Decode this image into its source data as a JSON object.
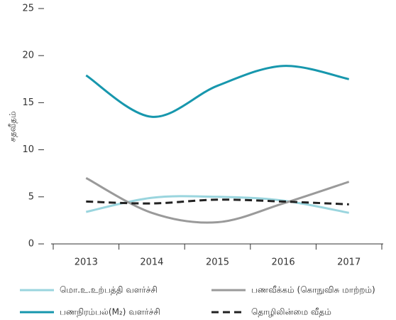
{
  "chart_data": {
    "type": "line",
    "y_label": "சதவீதம்",
    "categories": [
      "2013",
      "2014",
      "2015",
      "2016",
      "2017"
    ],
    "series": [
      {
        "name": "மொ.உ.உற்பத்தி வளர்ச்சி",
        "color": "#9ad5de",
        "dash": false,
        "values": [
          3.4,
          4.9,
          5.0,
          4.6,
          3.3
        ]
      },
      {
        "name": "பணவீக்கம் (கொநுவிசு மாற்றம்)",
        "color": "#9a9a9a",
        "dash": false,
        "values": [
          7.0,
          3.3,
          2.3,
          4.3,
          6.6
        ]
      },
      {
        "name": "பணநிரம்பல்(M₂) வளர்ச்சி",
        "color": "#1797ad",
        "dash": false,
        "values": [
          17.9,
          13.5,
          16.8,
          18.9,
          17.5
        ]
      },
      {
        "name": "தொழிலின்மை வீதம்",
        "color": "#222222",
        "dash": true,
        "values": [
          4.5,
          4.3,
          4.7,
          4.5,
          4.2
        ]
      }
    ],
    "ylim": [
      0,
      25
    ],
    "yticks": [
      0,
      5,
      10,
      15,
      20,
      25
    ]
  }
}
